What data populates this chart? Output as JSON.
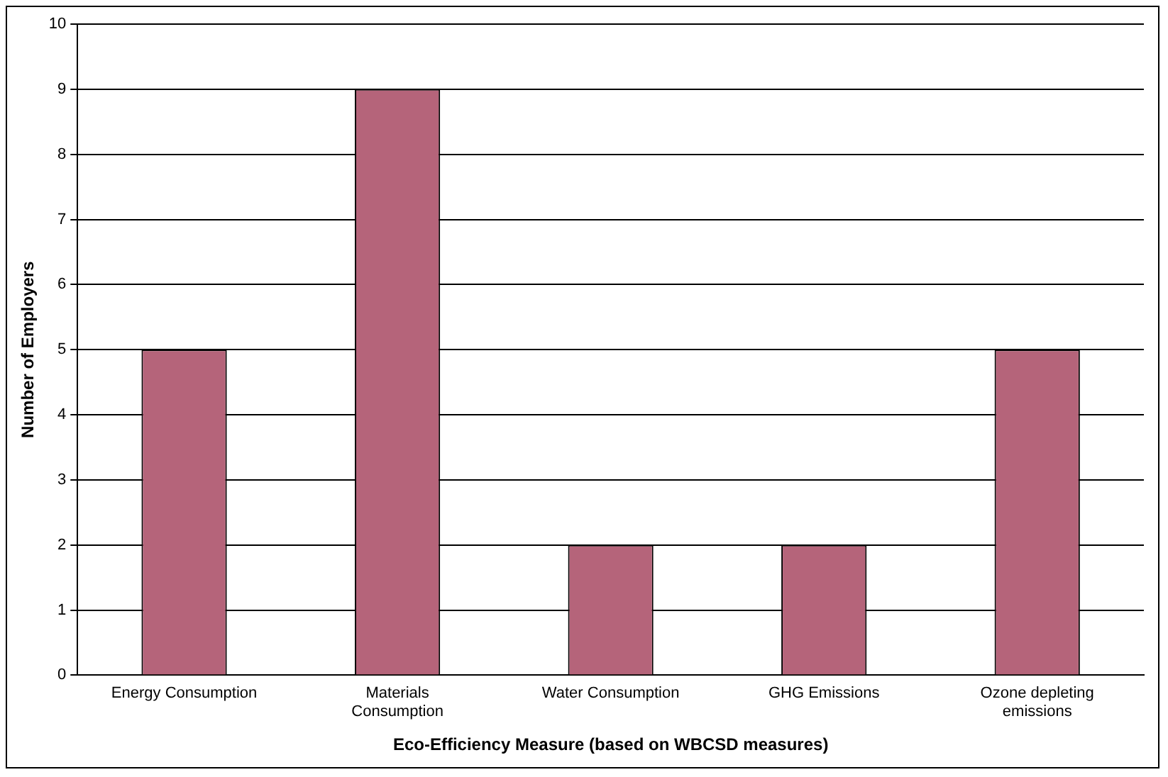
{
  "chart_data": {
    "type": "bar",
    "xlabel": "Eco-Efficiency Measure (based on WBCSD measures)",
    "ylabel": "Number of Employers",
    "categories": [
      "Energy Consumption",
      "Materials Consumption",
      "Water Consumption",
      "GHG Emissions",
      "Ozone depleting emissions"
    ],
    "values": [
      5,
      9,
      2,
      2,
      5
    ],
    "color": "#b5647a",
    "ylim": [
      0,
      10
    ],
    "yticks": [
      0,
      1,
      2,
      3,
      4,
      5,
      6,
      7,
      8,
      9,
      10
    ],
    "grid": "y",
    "legend": false
  }
}
